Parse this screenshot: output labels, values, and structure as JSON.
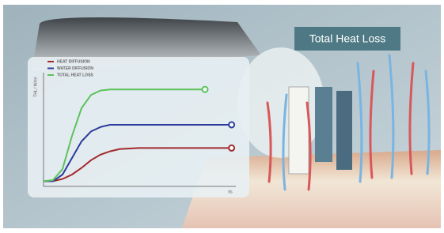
{
  "overlay_label": "Total Heat Loss",
  "chart_data": {
    "type": "line",
    "ylabel": "THL / W/m²",
    "xlabel": "t/s",
    "x": [
      0,
      0.5,
      1,
      1.5,
      2,
      2.5,
      3,
      3.5,
      4,
      5,
      6,
      7,
      8,
      8.5,
      9.9
    ],
    "xlim": [
      0,
      10
    ],
    "ylim": [
      0,
      10
    ],
    "series": [
      {
        "name": "HEAT DIFFUSION",
        "color": "#a3282c",
        "values": [
          0.4,
          0.4,
          0.6,
          1.0,
          1.6,
          2.3,
          2.8,
          3.1,
          3.3,
          3.4,
          3.4,
          3.4,
          3.4,
          3.4,
          3.4
        ]
      },
      {
        "name": "WATER DIFFUSION",
        "color": "#2c3b9c",
        "values": [
          0.4,
          0.4,
          1.0,
          2.5,
          4.0,
          4.9,
          5.3,
          5.5,
          5.5,
          5.5,
          5.5,
          5.5,
          5.5,
          5.5,
          5.5
        ]
      },
      {
        "name": "TOTAL HEAT LOSS",
        "color": "#5cc25c",
        "values": [
          0.4,
          0.5,
          1.5,
          4.5,
          7.0,
          8.2,
          8.6,
          8.7,
          8.7,
          8.7,
          8.7,
          8.7,
          8.7,
          8.7,
          null
        ]
      }
    ],
    "legend": "top-left"
  }
}
